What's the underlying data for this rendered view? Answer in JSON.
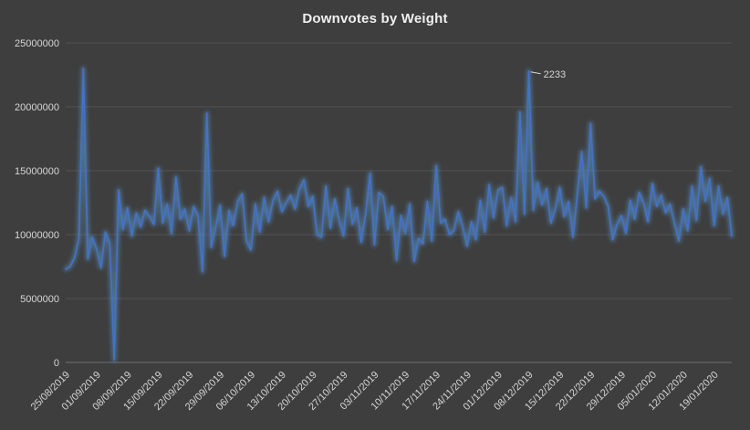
{
  "chart_data": {
    "type": "line",
    "title": "Downvotes by Weight",
    "series_name": "Downvotes",
    "x_start_date": "25/08/2019",
    "x_tick_interval_days": 7,
    "x_tick_labels": [
      "25/08/2019",
      "01/09/2019",
      "08/09/2019",
      "15/09/2019",
      "22/09/2019",
      "29/09/2019",
      "06/10/2019",
      "13/10/2019",
      "20/10/2019",
      "27/10/2019",
      "03/11/2019",
      "10/11/2019",
      "17/11/2019",
      "24/11/2019",
      "01/12/2019",
      "08/12/2019",
      "15/12/2019",
      "22/12/2019",
      "29/12/2019",
      "05/01/2020",
      "12/01/2020",
      "19/01/2020"
    ],
    "ylim": [
      0,
      25000000
    ],
    "y_tick_step": 5000000,
    "y_tick_labels": [
      "0",
      "5000000",
      "10000000",
      "15000000",
      "20000000",
      "25000000"
    ],
    "grid": true,
    "legend": "none",
    "annotation": {
      "text": "2233",
      "index": 105
    },
    "values": [
      7300000,
      7500000,
      8200000,
      9700000,
      23000000,
      8100000,
      9800000,
      8900000,
      7400000,
      10200000,
      9300000,
      200000,
      13500000,
      10400000,
      12100000,
      9900000,
      11700000,
      10600000,
      11900000,
      11400000,
      10800000,
      15200000,
      10900000,
      12400000,
      10100000,
      14500000,
      11200000,
      12000000,
      10300000,
      12200000,
      11500000,
      7100000,
      19500000,
      9000000,
      10600000,
      12300000,
      8300000,
      11900000,
      10700000,
      12600000,
      13200000,
      9500000,
      8800000,
      12400000,
      10200000,
      12900000,
      11000000,
      12700000,
      13400000,
      11800000,
      12500000,
      13100000,
      12000000,
      13600000,
      14300000,
      12200000,
      13000000,
      10000000,
      9800000,
      13800000,
      10500000,
      12800000,
      11100000,
      9900000,
      13600000,
      10800000,
      12100000,
      9400000,
      11600000,
      14800000,
      9200000,
      13300000,
      13000000,
      10400000,
      12200000,
      8000000,
      11500000,
      10100000,
      12400000,
      7900000,
      9700000,
      9300000,
      12600000,
      9500000,
      15400000,
      10900000,
      11200000,
      10000000,
      10300000,
      11800000,
      10600000,
      9100000,
      11000000,
      9600000,
      12700000,
      10200000,
      13900000,
      11300000,
      13500000,
      13700000,
      10700000,
      12900000,
      11000000,
      19600000,
      11600000,
      22800000,
      11900000,
      14100000,
      12300000,
      13600000,
      10900000,
      12000000,
      13700000,
      11400000,
      12600000,
      9800000,
      13200000,
      16500000,
      12100000,
      18700000,
      12800000,
      13400000,
      13000000,
      12200000,
      9600000,
      10800000,
      11500000,
      10100000,
      12700000,
      11200000,
      13300000,
      12500000,
      11000000,
      14000000,
      12200000,
      13100000,
      11700000,
      12400000,
      10900000,
      9500000,
      12000000,
      10300000,
      13800000,
      11100000,
      15300000,
      12600000,
      14400000,
      10700000,
      13800000,
      11600000,
      12900000,
      9900000
    ],
    "colors": {
      "background": "#3e3e3e",
      "line": "#4472c4",
      "glow": "#5b9bd5",
      "gridline": "#515151",
      "axis": "#6f6f6f",
      "text": "#d6d6d6",
      "title": "#f0f0f0"
    }
  }
}
